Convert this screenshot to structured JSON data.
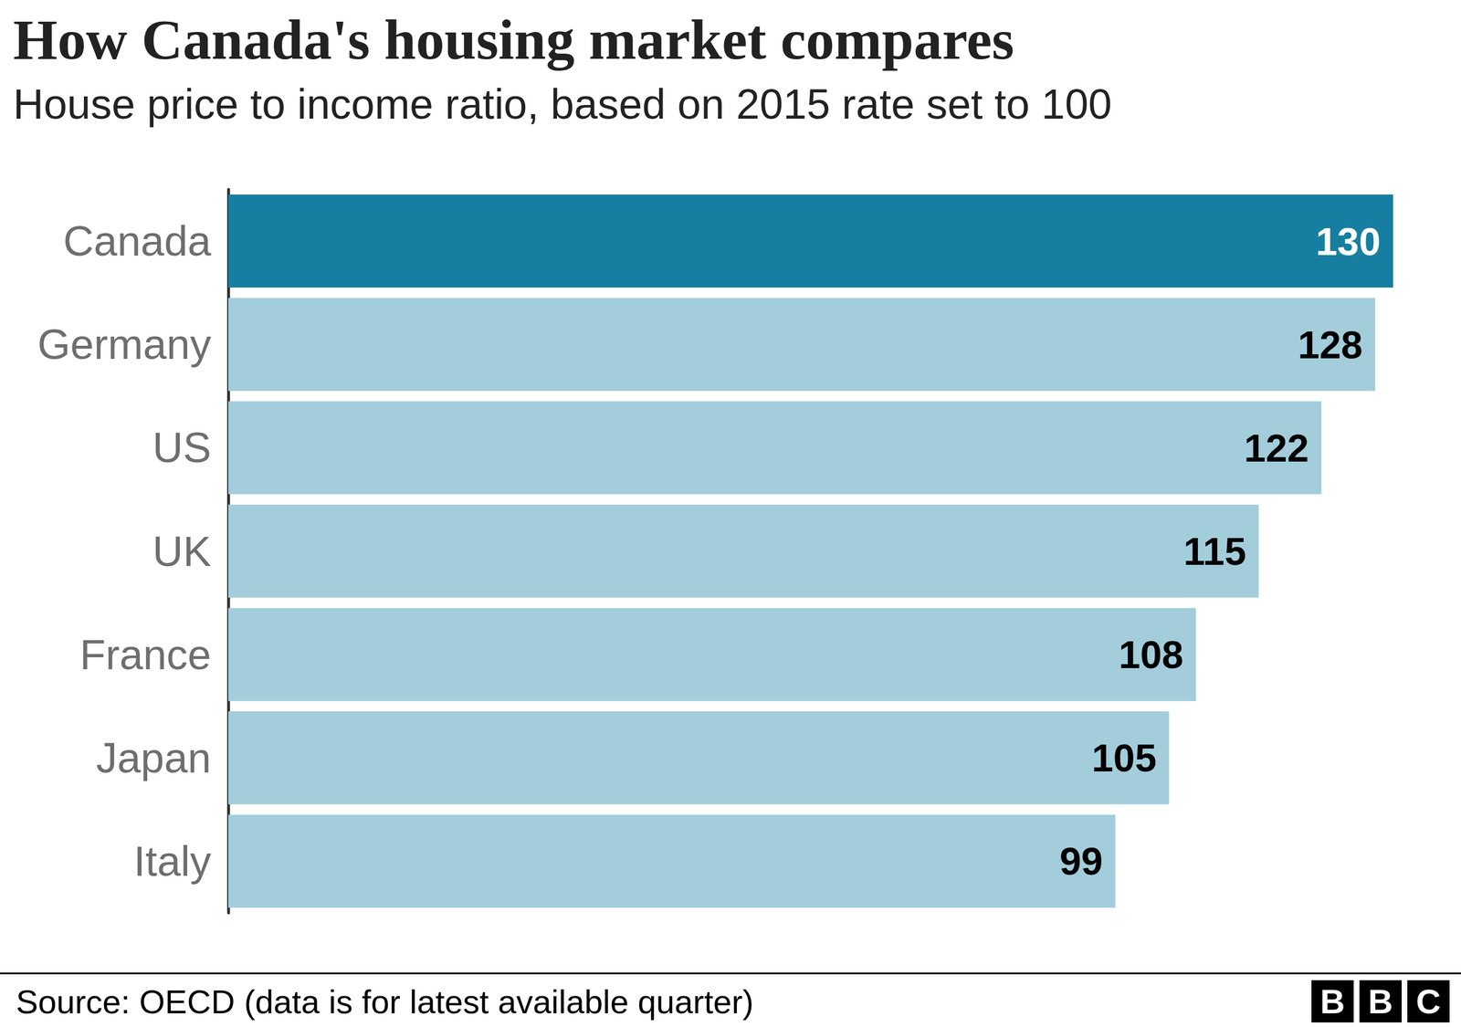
{
  "chart_data": {
    "type": "bar",
    "title": "How Canada's housing market compares",
    "subtitle": "House price to income ratio, based on 2015 rate set to 100",
    "source": "Source: OECD (data is for latest available quarter)",
    "logo": "BBC",
    "orientation": "horizontal",
    "categories": [
      "Canada",
      "Germany",
      "US",
      "UK",
      "France",
      "Japan",
      "Italy"
    ],
    "values": [
      130,
      128,
      122,
      115,
      108,
      105,
      99
    ],
    "colors": [
      "#167fa1",
      "#a3cddb",
      "#a3cddb",
      "#a3cddb",
      "#a3cddb",
      "#a3cddb",
      "#a3cddb"
    ],
    "xlim": [
      0,
      130
    ],
    "data_labels": true,
    "tick_labels": "y",
    "grid": false
  }
}
